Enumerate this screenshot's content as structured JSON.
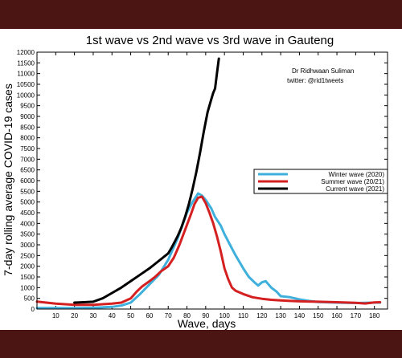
{
  "chart_data": {
    "type": "line",
    "title": "1st wave vs 2nd wave vs 3rd wave in Gauteng",
    "xlabel": "Wave, days",
    "ylabel": "7-day rolling average COVID-19 cases",
    "xlim": [
      0,
      187
    ],
    "ylim": [
      0,
      12000
    ],
    "x_ticks": [
      10,
      20,
      30,
      40,
      50,
      60,
      70,
      80,
      90,
      100,
      110,
      120,
      130,
      140,
      150,
      160,
      170,
      180
    ],
    "y_ticks": [
      0,
      500,
      1000,
      1500,
      2000,
      2500,
      3000,
      3500,
      4000,
      4500,
      5000,
      5500,
      6000,
      6500,
      7000,
      7500,
      8000,
      8500,
      9000,
      9500,
      10000,
      10500,
      11000,
      11500,
      12000
    ],
    "grid": false,
    "legend_position": "right-middle",
    "annotation": [
      "Dr Ridhwaan Suliman",
      "twitter: @rid1tweets"
    ],
    "series": [
      {
        "name": "Winter wave (2020)",
        "color": "#3fb0dc",
        "points": [
          [
            0,
            50
          ],
          [
            10,
            50
          ],
          [
            20,
            50
          ],
          [
            30,
            60
          ],
          [
            40,
            100
          ],
          [
            45,
            160
          ],
          [
            50,
            300
          ],
          [
            55,
            700
          ],
          [
            60,
            1150
          ],
          [
            65,
            1600
          ],
          [
            70,
            2300
          ],
          [
            75,
            3300
          ],
          [
            80,
            4500
          ],
          [
            83,
            5000
          ],
          [
            86,
            5400
          ],
          [
            88,
            5300
          ],
          [
            90,
            5100
          ],
          [
            93,
            4700
          ],
          [
            95,
            4300
          ],
          [
            98,
            3900
          ],
          [
            100,
            3500
          ],
          [
            103,
            3000
          ],
          [
            106,
            2500
          ],
          [
            110,
            1900
          ],
          [
            113,
            1500
          ],
          [
            116,
            1250
          ],
          [
            118,
            1100
          ],
          [
            120,
            1250
          ],
          [
            122,
            1300
          ],
          [
            125,
            1000
          ],
          [
            128,
            800
          ],
          [
            130,
            600
          ],
          [
            135,
            550
          ],
          [
            140,
            450
          ],
          [
            145,
            380
          ],
          [
            150,
            330
          ],
          [
            160,
            300
          ],
          [
            170,
            280
          ],
          [
            180,
            300
          ],
          [
            183,
            300
          ]
        ]
      },
      {
        "name": "Summer wave (20/21)",
        "color": "#d42020",
        "points": [
          [
            0,
            350
          ],
          [
            5,
            300
          ],
          [
            10,
            250
          ],
          [
            20,
            200
          ],
          [
            30,
            200
          ],
          [
            40,
            250
          ],
          [
            45,
            300
          ],
          [
            50,
            500
          ],
          [
            53,
            800
          ],
          [
            56,
            1050
          ],
          [
            60,
            1300
          ],
          [
            63,
            1500
          ],
          [
            66,
            1750
          ],
          [
            70,
            2000
          ],
          [
            73,
            2400
          ],
          [
            76,
            3000
          ],
          [
            79,
            3700
          ],
          [
            82,
            4400
          ],
          [
            84,
            4900
          ],
          [
            86,
            5200
          ],
          [
            88,
            5250
          ],
          [
            90,
            4950
          ],
          [
            92,
            4500
          ],
          [
            94,
            4000
          ],
          [
            96,
            3400
          ],
          [
            98,
            2700
          ],
          [
            100,
            1900
          ],
          [
            102,
            1400
          ],
          [
            104,
            1000
          ],
          [
            106,
            850
          ],
          [
            110,
            700
          ],
          [
            115,
            550
          ],
          [
            120,
            480
          ],
          [
            125,
            430
          ],
          [
            130,
            400
          ],
          [
            135,
            380
          ],
          [
            140,
            360
          ],
          [
            150,
            340
          ],
          [
            160,
            320
          ],
          [
            170,
            290
          ],
          [
            175,
            260
          ],
          [
            180,
            310
          ],
          [
            183,
            320
          ]
        ]
      },
      {
        "name": "Current wave (2021)",
        "color": "#000000",
        "points": [
          [
            20,
            300
          ],
          [
            25,
            320
          ],
          [
            30,
            340
          ],
          [
            35,
            500
          ],
          [
            40,
            750
          ],
          [
            45,
            1000
          ],
          [
            50,
            1300
          ],
          [
            55,
            1600
          ],
          [
            60,
            1900
          ],
          [
            65,
            2250
          ],
          [
            70,
            2600
          ],
          [
            72,
            2900
          ],
          [
            75,
            3400
          ],
          [
            77,
            3800
          ],
          [
            79,
            4300
          ],
          [
            81,
            4900
          ],
          [
            83,
            5600
          ],
          [
            85,
            6400
          ],
          [
            87,
            7300
          ],
          [
            89,
            8300
          ],
          [
            91,
            9200
          ],
          [
            93,
            9800
          ],
          [
            94,
            10100
          ],
          [
            95,
            10300
          ],
          [
            96,
            11000
          ],
          [
            97,
            11700
          ]
        ]
      }
    ]
  }
}
